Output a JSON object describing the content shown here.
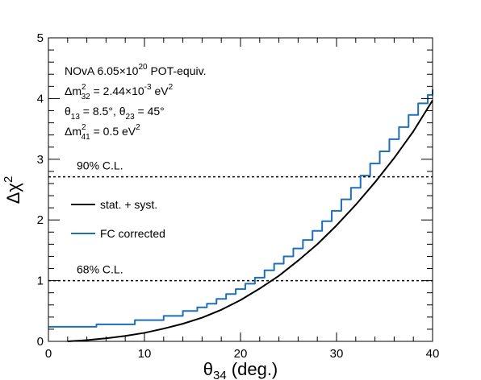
{
  "chart_data": {
    "type": "line",
    "xlabel": {
      "base": "θ",
      "sub": "34",
      "rest": " (deg.)"
    },
    "ylabel": {
      "base": "Δχ",
      "sup": "2"
    },
    "xlim": [
      0,
      40
    ],
    "ylim": [
      0,
      5
    ],
    "x_ticks": [
      0,
      10,
      20,
      30,
      40
    ],
    "y_ticks": [
      0,
      1,
      2,
      3,
      4,
      5
    ],
    "annotations": {
      "line1": {
        "a": "NOvA 6.05×10",
        "sup": "20",
        "b": " POT-equiv."
      },
      "line2": {
        "a": "Δm",
        "sup": "2",
        "sub": "32",
        "b": " = 2.44×10",
        "sup2": "-3",
        "c": " eV",
        "sup3": "2"
      },
      "line3": {
        "a": "θ",
        "sub": "13",
        "b": " = 8.5°, θ",
        "sub2": "23",
        "c": " = 45°"
      },
      "line4": {
        "a": "Δm",
        "sup": "2",
        "sub": "41",
        "b": " = 0.5 eV",
        "sup2": "2"
      }
    },
    "reference_lines": [
      {
        "label": "90% C.L.",
        "y": 2.71
      },
      {
        "label": "68% C.L.",
        "y": 1.0
      }
    ],
    "legend": {
      "placement": "middle-left"
    },
    "series": [
      {
        "name": "stat. + syst.",
        "color": "#000000",
        "style": "smooth",
        "x": [
          2,
          4,
          6,
          8,
          10,
          12,
          14,
          16,
          18,
          20,
          22,
          24,
          26,
          28,
          30,
          32,
          34,
          36,
          38,
          40
        ],
        "y": [
          0.0,
          0.02,
          0.05,
          0.09,
          0.14,
          0.21,
          0.29,
          0.39,
          0.52,
          0.68,
          0.87,
          1.08,
          1.33,
          1.6,
          1.91,
          2.25,
          2.62,
          3.02,
          3.46,
          3.97
        ]
      },
      {
        "name": "FC corrected",
        "color": "#1f6fb8",
        "style": "steps",
        "x": [
          0,
          5,
          9,
          12,
          14,
          15.5,
          16.5,
          17.5,
          18.5,
          19.5,
          20.5,
          21.5,
          22.5,
          23.5,
          24.5,
          25.5,
          26.5,
          27.5,
          28.5,
          29.5,
          30.5,
          31.5,
          32.5,
          33.5,
          34.5,
          35.5,
          36.5,
          37.5,
          38.5,
          39.5,
          40
        ],
        "y": [
          0.24,
          0.28,
          0.35,
          0.42,
          0.5,
          0.56,
          0.62,
          0.7,
          0.78,
          0.86,
          0.95,
          1.05,
          1.17,
          1.28,
          1.4,
          1.53,
          1.67,
          1.82,
          1.98,
          2.15,
          2.34,
          2.53,
          2.73,
          2.93,
          3.13,
          3.33,
          3.53,
          3.73,
          3.92,
          4.06,
          4.15
        ]
      }
    ]
  }
}
